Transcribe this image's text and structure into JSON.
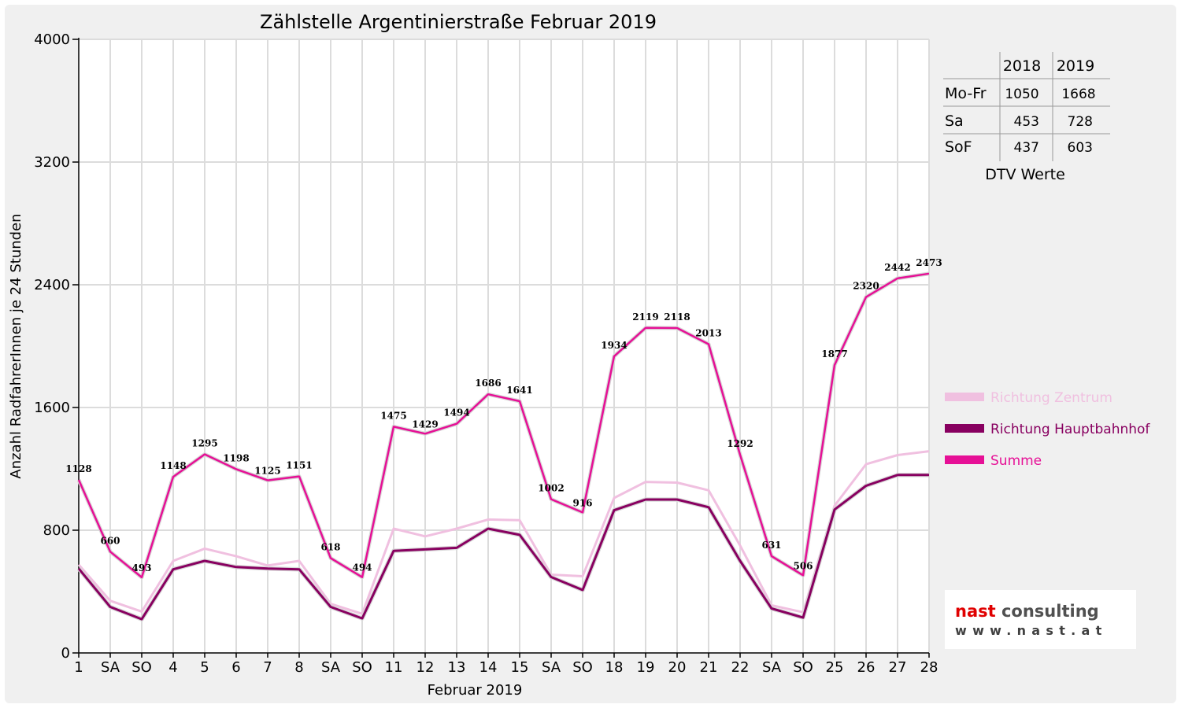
{
  "chart_data": {
    "type": "line",
    "title": "Zählstelle Argentinierstraße Februar 2019",
    "xlabel": "Februar 2019",
    "ylabel": "Anzahl RadfahrerInnen je 24 Stunden",
    "ylim": [
      0,
      4000
    ],
    "yticks": [
      0,
      800,
      1600,
      2400,
      3200,
      4000
    ],
    "grid": true,
    "legend_position": "right",
    "categories": [
      "1",
      "SA",
      "SO",
      "4",
      "5",
      "6",
      "7",
      "8",
      "SA",
      "SO",
      "11",
      "12",
      "13",
      "14",
      "15",
      "SA",
      "SO",
      "18",
      "19",
      "20",
      "21",
      "22",
      "SA",
      "SO",
      "25",
      "26",
      "27",
      "28"
    ],
    "weekend_categories": [
      "SO"
    ],
    "weekend_color": "#ff0000",
    "series": [
      {
        "name": "Richtung Zentrum",
        "color": "#f0c0e0",
        "values": [
          575,
          340,
          270,
          600,
          680,
          630,
          570,
          600,
          320,
          255,
          810,
          760,
          810,
          870,
          865,
          510,
          500,
          1010,
          1115,
          1110,
          1060,
          700,
          310,
          265,
          960,
          1230,
          1290,
          1315
        ]
      },
      {
        "name": "Richtung Hauptbahnhof",
        "color": "#880060",
        "values": [
          550,
          300,
          220,
          545,
          600,
          560,
          550,
          545,
          300,
          225,
          665,
          675,
          685,
          810,
          770,
          495,
          410,
          930,
          1000,
          1000,
          950,
          600,
          290,
          230,
          935,
          1090,
          1160,
          1160
        ]
      },
      {
        "name": "Summe",
        "color": "#e61096",
        "values": [
          1128,
          660,
          493,
          1148,
          1295,
          1198,
          1125,
          1151,
          618,
          494,
          1475,
          1429,
          1494,
          1686,
          1641,
          1002,
          916,
          1934,
          2119,
          2118,
          2013,
          1292,
          631,
          506,
          1877,
          2320,
          2442,
          2473
        ]
      }
    ],
    "data_labels": [
      "1128",
      "660",
      "493",
      "1148",
      "1295",
      "1198",
      "1125",
      "1151",
      "618",
      "494",
      "1475",
      "1429",
      "1494",
      "1686",
      "1641",
      "1002",
      "916",
      "1934",
      "2119",
      "2118",
      "2013",
      "1292",
      "631",
      "506",
      "1877",
      "2320",
      "2442",
      "2473"
    ]
  },
  "dtv_table": {
    "caption": "DTV Werte",
    "years": [
      "2018",
      "2019"
    ],
    "rows": [
      {
        "label": "Mo-Fr",
        "v2018": "1050",
        "v2019": "1668"
      },
      {
        "label": "Sa",
        "v2018": "453",
        "v2019": "728"
      },
      {
        "label": "SoF",
        "v2018": "437",
        "v2019": "603"
      }
    ]
  },
  "logo": {
    "brand": "nast",
    "word": "consulting",
    "url": "www.nast.at",
    "brand_color": "#e00000",
    "word_color": "#505050"
  }
}
